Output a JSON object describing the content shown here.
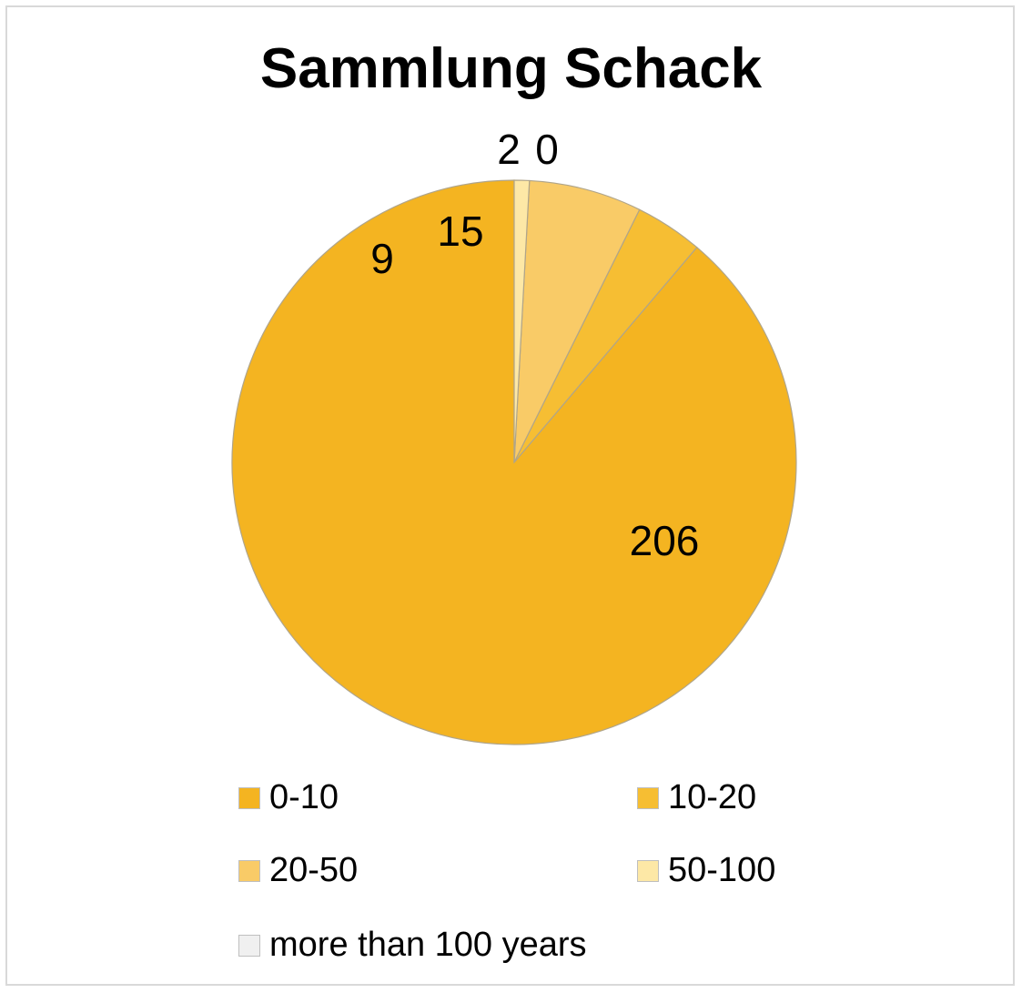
{
  "chart_data": {
    "type": "pie",
    "title": "Sammlung Schack",
    "categories": [
      "0-10",
      "10-20",
      "20-50",
      "50-100",
      "more than 100 years"
    ],
    "values": [
      206,
      9,
      15,
      2,
      0
    ],
    "data_labels": [
      "206",
      "9",
      "15",
      "2",
      "0"
    ],
    "colors": [
      "#f4b421",
      "#f6be33",
      "#f9cb67",
      "#fde8a6",
      "#f0f0f0"
    ],
    "start_angle_deg": 0,
    "direction": "counterclockwise",
    "legend_position": "bottom"
  }
}
